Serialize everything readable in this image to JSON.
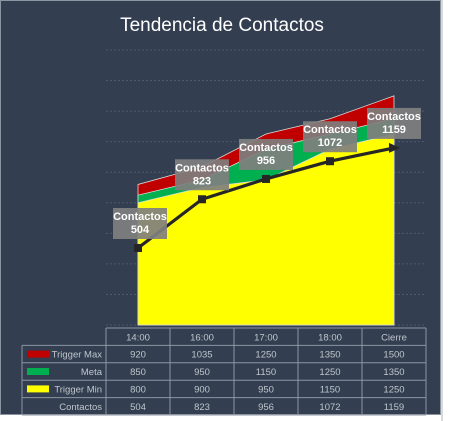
{
  "chart_data": {
    "type": "area",
    "title": "Tendencia de Contactos",
    "categories": [
      "14:00",
      "16:00",
      "17:00",
      "18:00",
      "Cierre"
    ],
    "ylim": [
      0,
      1800
    ],
    "grid": true,
    "stacked_areas": [
      {
        "name": "Trigger Max",
        "values": [
          920,
          1035,
          1250,
          1350,
          1500
        ],
        "color": "#c00000"
      },
      {
        "name": "Meta",
        "values": [
          850,
          950,
          1150,
          1250,
          1350
        ],
        "color": "#00b050"
      },
      {
        "name": "Trigger Min",
        "values": [
          800,
          900,
          950,
          1150,
          1250
        ],
        "color": "#ffff00"
      }
    ],
    "line_series": {
      "name": "Contactos",
      "values": [
        504,
        823,
        956,
        1072,
        1159
      ],
      "labels": [
        "Contactos\n504",
        "Contactos\n823",
        "Contactos\n956",
        "Contactos\n1072",
        "Contactos\n1159"
      ],
      "color": "#262626"
    },
    "data_table": {
      "header": [
        "14:00",
        "16:00",
        "17:00",
        "18:00",
        "Cierre"
      ],
      "rows": [
        {
          "name": "Trigger Max",
          "color": "#c00000",
          "values": [
            "920",
            "1035",
            "1250",
            "1350",
            "1500"
          ]
        },
        {
          "name": "Meta",
          "color": "#00b050",
          "values": [
            "850",
            "950",
            "1150",
            "1250",
            "1350"
          ]
        },
        {
          "name": "Trigger Min",
          "color": "#ffff00",
          "values": [
            "800",
            "900",
            "950",
            "1150",
            "1250"
          ]
        },
        {
          "name": "Contactos",
          "color": null,
          "values": [
            "504",
            "823",
            "956",
            "1072",
            "1159"
          ]
        }
      ]
    }
  }
}
